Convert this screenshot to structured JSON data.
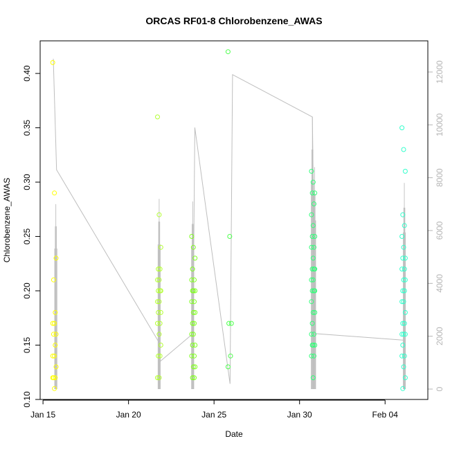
{
  "chart_data": {
    "type": "scatter",
    "title": "ORCAS RF01-8 Chlorobenzene_AWAS",
    "xlabel": "Date",
    "ylabel": "Chlorobenzene_AWAS",
    "x_ticks": [
      "Jan 15",
      "Jan 20",
      "Jan 25",
      "Jan 30",
      "Feb 04"
    ],
    "y_ticks": [
      "0.10",
      "0.15",
      "0.20",
      "0.25",
      "0.30",
      "0.35",
      "0.40"
    ],
    "y2_ticks": [
      "0",
      "2000",
      "4000",
      "6000",
      "8000",
      "10000",
      "12000"
    ],
    "xlim": [
      "2016-01-14 20:00",
      "2016-02-06 12:00"
    ],
    "ylim": [
      0.1,
      0.43
    ],
    "y2lim": [
      0,
      12000
    ],
    "grid": false,
    "legend": "none",
    "point_color_scale": [
      "#ffff00",
      "#adff2f",
      "#7cfc00",
      "#32cd32",
      "#00ff7f",
      "#00fa9a",
      "#40e0d0"
    ],
    "line_color": "#bebebe",
    "flights": [
      {
        "time": "2016-01-15 16:00",
        "color": "#ffff00",
        "values": [
          0.41,
          0.29,
          0.23,
          0.21,
          0.18,
          0.17,
          0.17,
          0.16,
          0.16,
          0.15,
          0.14,
          0.14,
          0.13,
          0.12,
          0.12,
          0.12,
          0.11
        ]
      },
      {
        "time": "2016-01-21 19:00",
        "color": "#b3ff33",
        "values": [
          0.36,
          0.27,
          0.24,
          0.22,
          0.22,
          0.21,
          0.21,
          0.2,
          0.2,
          0.2,
          0.19,
          0.19,
          0.18,
          0.18,
          0.17,
          0.17,
          0.16,
          0.15,
          0.14,
          0.14,
          0.12,
          0.12
        ]
      },
      {
        "time": "2016-01-23 19:00",
        "color": "#80ff20",
        "values": [
          0.25,
          0.24,
          0.23,
          0.22,
          0.21,
          0.21,
          0.2,
          0.2,
          0.2,
          0.19,
          0.19,
          0.18,
          0.18,
          0.17,
          0.17,
          0.16,
          0.16,
          0.15,
          0.15,
          0.14,
          0.14,
          0.13,
          0.13,
          0.12,
          0.12
        ]
      },
      {
        "time": "2016-01-25 22:00",
        "color": "#4dff4d",
        "values": [
          0.42,
          0.25,
          0.17,
          0.17,
          0.14,
          0.13
        ]
      },
      {
        "time": "2016-01-30 19:00",
        "color": "#33ff7a",
        "values": [
          0.31,
          0.3,
          0.29,
          0.29,
          0.28,
          0.27,
          0.26,
          0.25,
          0.25,
          0.24,
          0.24,
          0.23,
          0.22,
          0.22,
          0.22,
          0.21,
          0.21,
          0.2,
          0.2,
          0.2,
          0.19,
          0.18,
          0.18,
          0.17,
          0.16,
          0.16,
          0.15,
          0.15,
          0.15,
          0.14,
          0.14,
          0.12
        ]
      },
      {
        "time": "2016-02-05 02:00",
        "color": "#33ffcc",
        "values": [
          0.35,
          0.33,
          0.31,
          0.27,
          0.26,
          0.25,
          0.24,
          0.23,
          0.23,
          0.22,
          0.22,
          0.21,
          0.21,
          0.2,
          0.2,
          0.19,
          0.19,
          0.18,
          0.17,
          0.17,
          0.16,
          0.16,
          0.16,
          0.15,
          0.14,
          0.14,
          0.13,
          0.12,
          0.11
        ]
      }
    ],
    "secondary_line": [
      {
        "x": "2016-01-15 14:30",
        "y": 12500
      },
      {
        "x": "2016-01-15 19:00",
        "y": 8300
      },
      {
        "x": "2016-01-21 18:00",
        "y": 1800
      },
      {
        "x": "2016-01-21 20:30",
        "y": 1050
      },
      {
        "x": "2016-01-23 18:30",
        "y": 2100
      },
      {
        "x": "2016-01-23 21:00",
        "y": 9900
      },
      {
        "x": "2016-01-25 22:30",
        "y": 200
      },
      {
        "x": "2016-01-26 02:00",
        "y": 11900
      },
      {
        "x": "2016-01-30 18:00",
        "y": 10300
      },
      {
        "x": "2016-01-30 22:00",
        "y": 2100
      },
      {
        "x": "2016-02-05 02:30",
        "y": 1850
      }
    ],
    "secondary_spikes": [
      {
        "x": "2016-01-15 18:00",
        "ymax": 7000
      },
      {
        "x": "2016-01-21 19:00",
        "ymax": 7200
      },
      {
        "x": "2016-01-23 18:00",
        "ymax": 7100
      },
      {
        "x": "2016-01-30 18:00",
        "ymax": 10300
      },
      {
        "x": "2016-01-30 21:00",
        "ymax": 8400
      },
      {
        "x": "2016-02-05 03:00",
        "ymax": 7800
      }
    ]
  }
}
